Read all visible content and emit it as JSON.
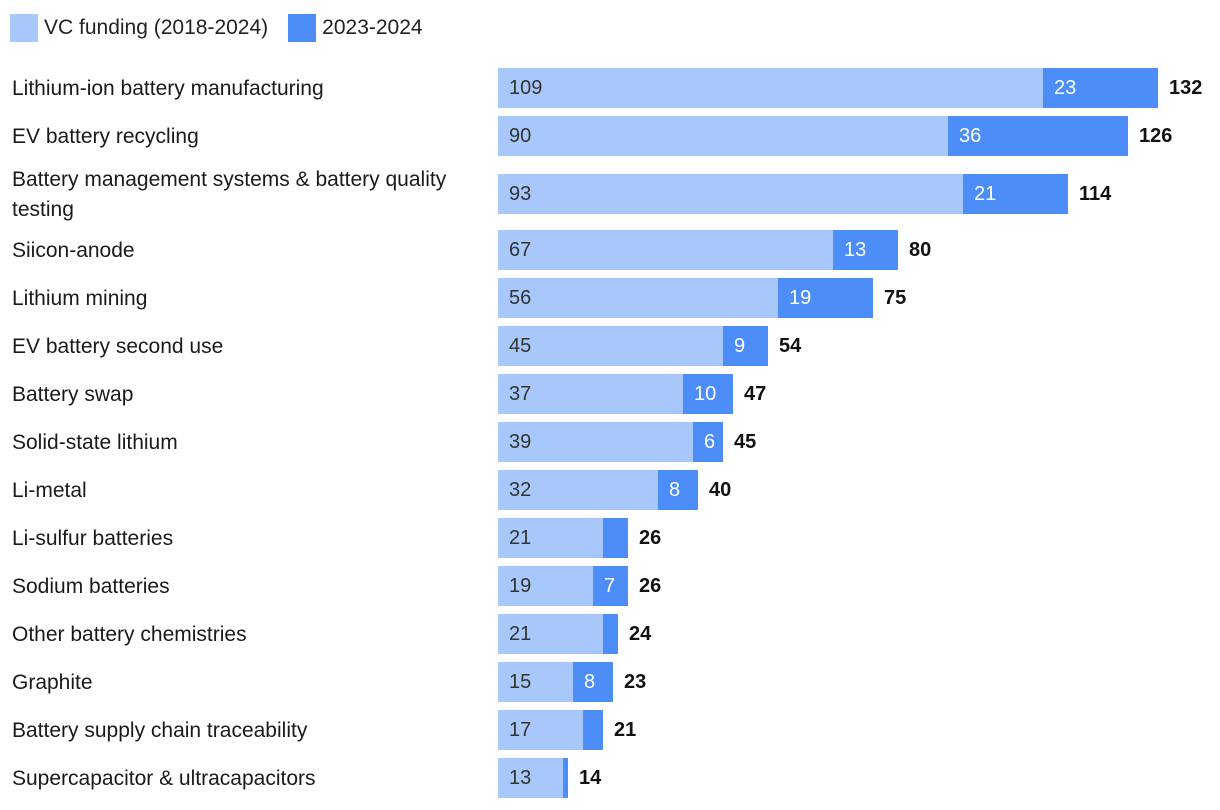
{
  "chart_data": {
    "type": "bar",
    "orientation": "horizontal",
    "stacked": true,
    "title": "",
    "xlabel": "",
    "ylabel": "",
    "xlim": [
      0,
      132
    ],
    "legend_position": "top-left",
    "categories": [
      "Lithium-ion battery manufacturing",
      "EV battery recycling",
      "Battery management systems & battery quality testing",
      "Siicon-anode",
      "Lithium mining",
      "EV battery second use",
      "Battery swap",
      "Solid-state lithium",
      "Li-metal",
      "Li-sulfur batteries",
      "Sodium batteries",
      "Other battery chemistries",
      "Graphite",
      "Battery supply chain traceability",
      "Supercapacitor & ultracapacitors"
    ],
    "series": [
      {
        "name": "VC funding (2018-2024)",
        "color": "#a8c8fb",
        "values": [
          109,
          90,
          93,
          67,
          56,
          45,
          37,
          39,
          32,
          21,
          19,
          21,
          15,
          17,
          13
        ],
        "labels": [
          "109",
          "90",
          "93",
          "67",
          "56",
          "45",
          "37",
          "39",
          "32",
          "21",
          "19",
          "21",
          "15",
          "17",
          "13"
        ]
      },
      {
        "name": "2023-2024",
        "color": "#4d8df7",
        "values": [
          23,
          36,
          21,
          13,
          19,
          9,
          10,
          6,
          8,
          5,
          7,
          3,
          8,
          4,
          1
        ],
        "labels": [
          "23",
          "36",
          "21",
          "13",
          "19",
          "9",
          "10",
          "6",
          "8",
          "",
          "7",
          "",
          "8",
          "",
          ""
        ]
      }
    ],
    "totals": [
      "132",
      "126",
      "114",
      "80",
      "75",
      "54",
      "47",
      "45",
      "40",
      "26",
      "26",
      "24",
      "23",
      "21",
      "14"
    ]
  }
}
